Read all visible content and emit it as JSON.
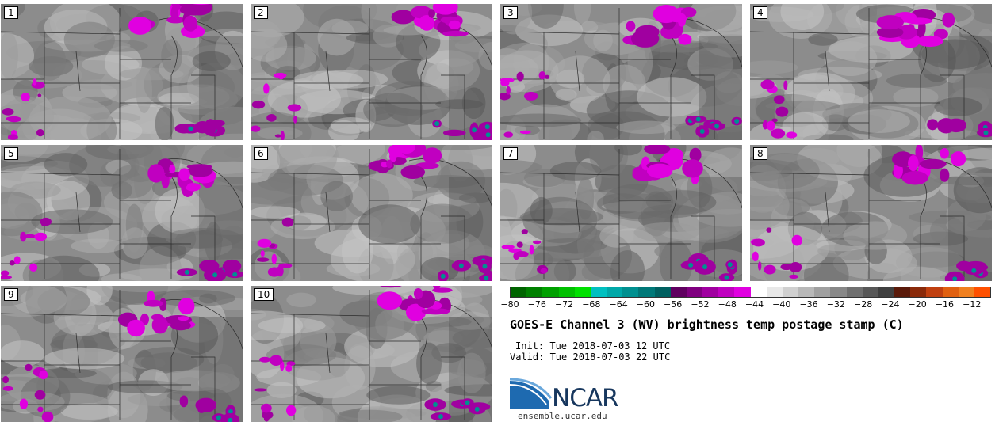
{
  "panels": [
    {
      "label": "1"
    },
    {
      "label": "2"
    },
    {
      "label": "3"
    },
    {
      "label": "4"
    },
    {
      "label": "5"
    },
    {
      "label": "6"
    },
    {
      "label": "7"
    },
    {
      "label": "8"
    },
    {
      "label": "9"
    },
    {
      "label": "10"
    }
  ],
  "colorbar": {
    "colors": [
      "#006400",
      "#008000",
      "#00a000",
      "#00c000",
      "#00e000",
      "#00c0c0",
      "#00a8a8",
      "#009090",
      "#007878",
      "#006060",
      "#600060",
      "#800080",
      "#a000a0",
      "#c000c0",
      "#e000e0",
      "#ffffff",
      "#e8e8e8",
      "#d0d0d0",
      "#b8b8b8",
      "#a0a0a0",
      "#888888",
      "#707070",
      "#585858",
      "#404040",
      "#5a1a0a",
      "#8a2a0a",
      "#c04010",
      "#e06010",
      "#f08020",
      "#ff5000"
    ],
    "tick_labels": [
      "−80",
      "−76",
      "−72",
      "−68",
      "−64",
      "−60",
      "−56",
      "−52",
      "−48",
      "−44",
      "−40",
      "−36",
      "−32",
      "−28",
      "−24",
      "−20",
      "−16",
      "−12"
    ]
  },
  "title": "GOES-E Channel 3 (WV) brightness temp postage stamp (C)",
  "init": "Init: Tue 2018-07-03 12 UTC",
  "valid": "Valid: Tue 2018-07-03 22 UTC",
  "logo_text": "NCAR",
  "url": "ensemble.ucar.edu"
}
